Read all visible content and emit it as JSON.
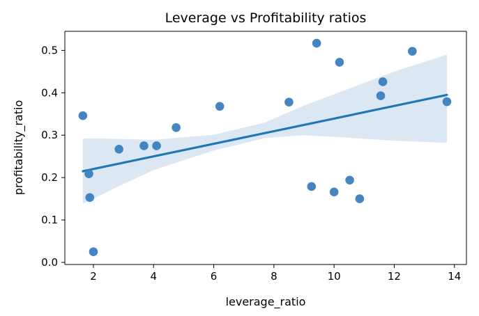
{
  "chart_data": {
    "type": "scatter",
    "title": "Leverage vs Profitability ratios",
    "xlabel": "leverage_ratio",
    "ylabel": "profitability_ratio",
    "xlim": [
      1.05,
      14.4
    ],
    "ylim": [
      -0.005,
      0.545
    ],
    "xticks": [
      2,
      4,
      6,
      8,
      10,
      12,
      14
    ],
    "yticks": [
      0.0,
      0.1,
      0.2,
      0.3,
      0.4,
      0.5
    ],
    "ytick_labels": [
      "0.0",
      "0.1",
      "0.2",
      "0.3",
      "0.4",
      "0.5"
    ],
    "grid": false,
    "colors": {
      "points": "#3b7fbd",
      "line": "#1f77b4",
      "band": "#cfe0f0"
    },
    "points": [
      {
        "x": 1.65,
        "y": 0.346
      },
      {
        "x": 1.85,
        "y": 0.209
      },
      {
        "x": 1.88,
        "y": 0.153
      },
      {
        "x": 2.0,
        "y": 0.025
      },
      {
        "x": 2.85,
        "y": 0.267
      },
      {
        "x": 3.68,
        "y": 0.275
      },
      {
        "x": 4.1,
        "y": 0.275
      },
      {
        "x": 4.75,
        "y": 0.318
      },
      {
        "x": 6.2,
        "y": 0.368
      },
      {
        "x": 8.5,
        "y": 0.378
      },
      {
        "x": 9.25,
        "y": 0.179
      },
      {
        "x": 9.42,
        "y": 0.517
      },
      {
        "x": 10.0,
        "y": 0.166
      },
      {
        "x": 10.18,
        "y": 0.472
      },
      {
        "x": 10.52,
        "y": 0.194
      },
      {
        "x": 10.85,
        "y": 0.15
      },
      {
        "x": 11.55,
        "y": 0.393
      },
      {
        "x": 11.62,
        "y": 0.426
      },
      {
        "x": 12.6,
        "y": 0.498
      },
      {
        "x": 13.75,
        "y": 0.379
      }
    ],
    "regression": {
      "x": [
        1.65,
        13.75
      ],
      "y": [
        0.215,
        0.395
      ]
    },
    "confidence_band": {
      "x": [
        1.65,
        2.5,
        4.0,
        6.0,
        7.7,
        9.0,
        10.5,
        12.0,
        13.75
      ],
      "lower": [
        0.138,
        0.168,
        0.218,
        0.264,
        0.293,
        0.3,
        0.294,
        0.287,
        0.282
      ],
      "upper": [
        0.292,
        0.292,
        0.289,
        0.301,
        0.33,
        0.37,
        0.41,
        0.45,
        0.49
      ]
    }
  }
}
